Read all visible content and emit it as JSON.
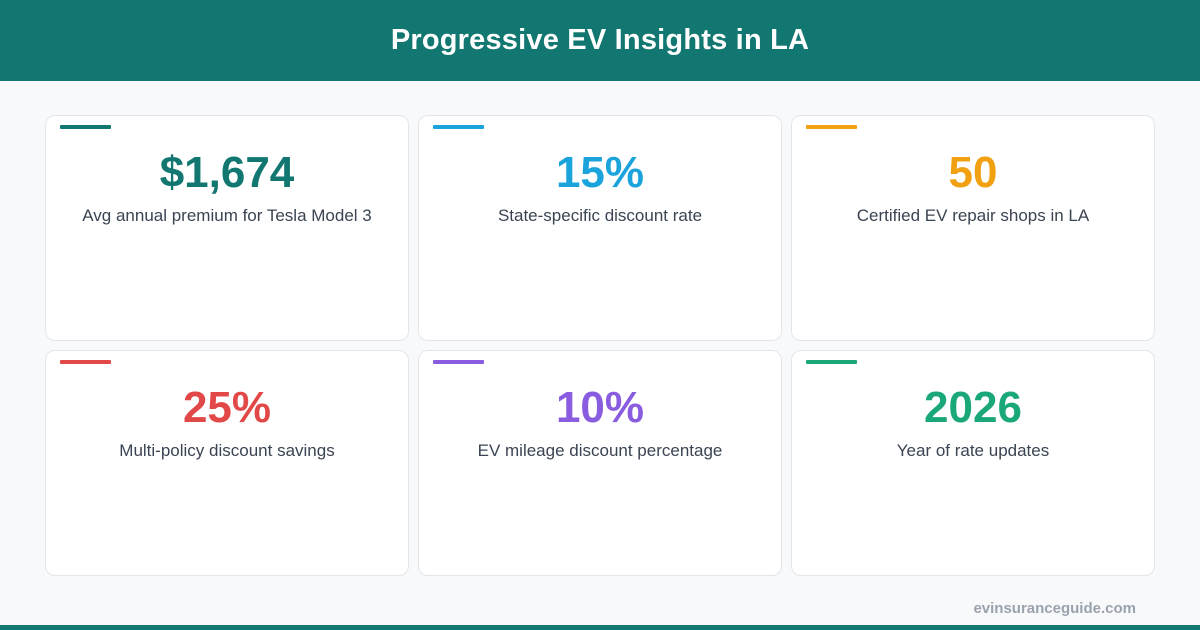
{
  "header": {
    "title": "Progressive EV Insights in LA",
    "color": "#127770"
  },
  "cards": [
    {
      "value": "$1,674",
      "label": "Avg annual premium for Tesla Model 3",
      "color": "#127770"
    },
    {
      "value": "15%",
      "label": "State-specific discount rate",
      "color": "#1ba3dc"
    },
    {
      "value": "50",
      "label": "Certified EV repair shops in LA",
      "color": "#f0a010"
    },
    {
      "value": "25%",
      "label": "Multi-policy discount savings",
      "color": "#e24848"
    },
    {
      "value": "10%",
      "label": "EV mileage discount percentage",
      "color": "#8a5ce0"
    },
    {
      "value": "2026",
      "label": "Year of rate updates",
      "color": "#1aa77a"
    }
  ],
  "footer": {
    "site": "evinsuranceguide.com",
    "bar_color": "#127770"
  }
}
